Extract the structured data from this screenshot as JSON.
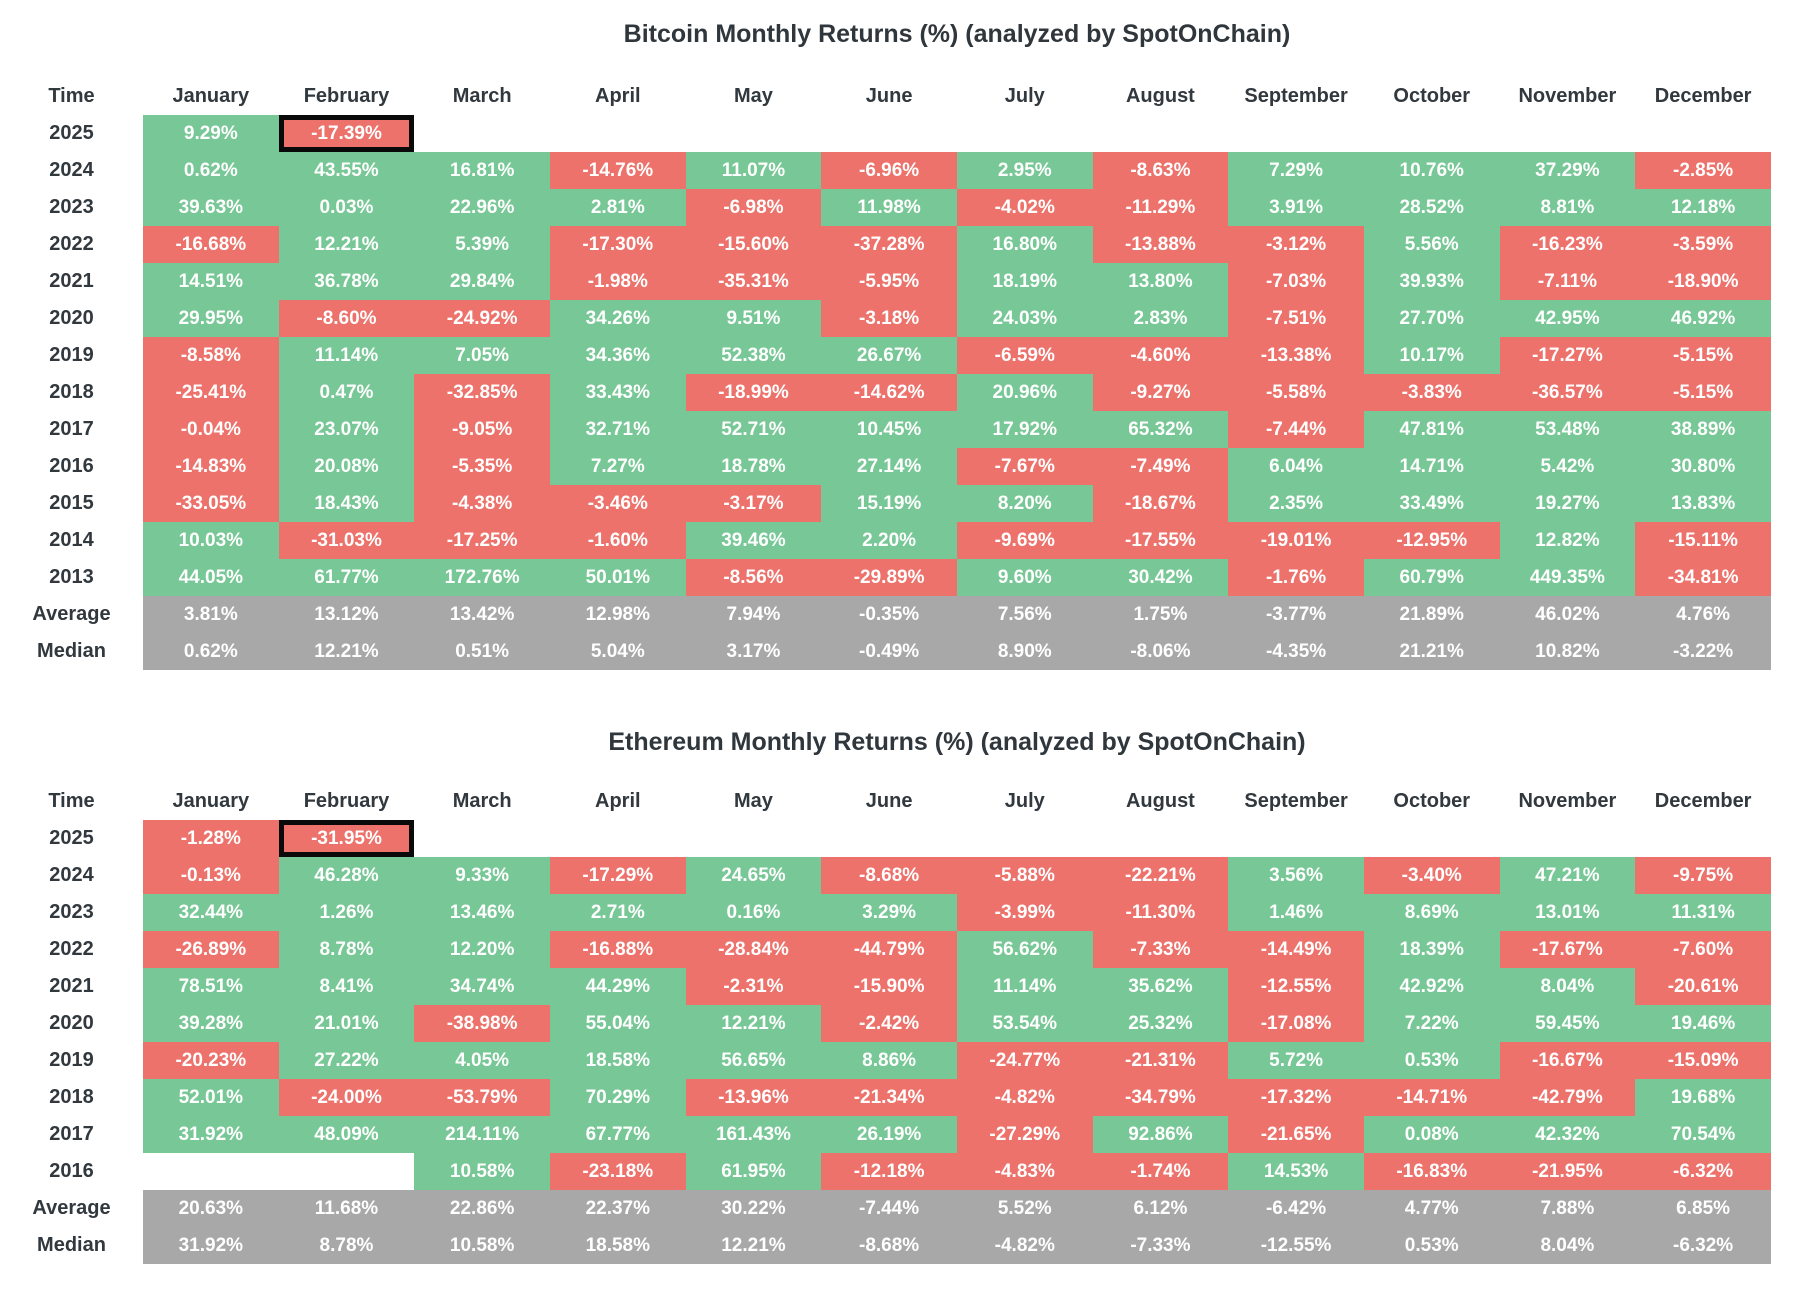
{
  "page": {
    "background": "#ffffff"
  },
  "colors": {
    "positive_cell": "#78c796",
    "negative_cell": "#ec726b",
    "summary_cell": "#a8a8a8",
    "empty_cell": "#ffffff",
    "cell_text": "#ffffff",
    "label_text": "#31383e",
    "highlight_border": "#0a0a0a"
  },
  "chart_data": [
    {
      "type": "heatmap",
      "title": "Bitcoin Monthly Returns (%) (analyzed by SpotOnChain)",
      "row_header": "Time",
      "columns": [
        "January",
        "February",
        "March",
        "April",
        "May",
        "June",
        "July",
        "August",
        "September",
        "October",
        "November",
        "December"
      ],
      "legend_position": "none",
      "grid": false,
      "highlight": {
        "row": "2025",
        "column": "February"
      },
      "rows": [
        {
          "label": "2025",
          "kind": "year",
          "values": [
            "9.29%",
            "-17.39%",
            "",
            "",
            "",
            "",
            "",
            "",
            "",
            "",
            "",
            ""
          ]
        },
        {
          "label": "2024",
          "kind": "year",
          "values": [
            "0.62%",
            "43.55%",
            "16.81%",
            "-14.76%",
            "11.07%",
            "-6.96%",
            "2.95%",
            "-8.63%",
            "7.29%",
            "10.76%",
            "37.29%",
            "-2.85%"
          ]
        },
        {
          "label": "2023",
          "kind": "year",
          "values": [
            "39.63%",
            "0.03%",
            "22.96%",
            "2.81%",
            "-6.98%",
            "11.98%",
            "-4.02%",
            "-11.29%",
            "3.91%",
            "28.52%",
            "8.81%",
            "12.18%"
          ]
        },
        {
          "label": "2022",
          "kind": "year",
          "values": [
            "-16.68%",
            "12.21%",
            "5.39%",
            "-17.30%",
            "-15.60%",
            "-37.28%",
            "16.80%",
            "-13.88%",
            "-3.12%",
            "5.56%",
            "-16.23%",
            "-3.59%"
          ]
        },
        {
          "label": "2021",
          "kind": "year",
          "values": [
            "14.51%",
            "36.78%",
            "29.84%",
            "-1.98%",
            "-35.31%",
            "-5.95%",
            "18.19%",
            "13.80%",
            "-7.03%",
            "39.93%",
            "-7.11%",
            "-18.90%"
          ]
        },
        {
          "label": "2020",
          "kind": "year",
          "values": [
            "29.95%",
            "-8.60%",
            "-24.92%",
            "34.26%",
            "9.51%",
            "-3.18%",
            "24.03%",
            "2.83%",
            "-7.51%",
            "27.70%",
            "42.95%",
            "46.92%"
          ]
        },
        {
          "label": "2019",
          "kind": "year",
          "values": [
            "-8.58%",
            "11.14%",
            "7.05%",
            "34.36%",
            "52.38%",
            "26.67%",
            "-6.59%",
            "-4.60%",
            "-13.38%",
            "10.17%",
            "-17.27%",
            "-5.15%"
          ]
        },
        {
          "label": "2018",
          "kind": "year",
          "values": [
            "-25.41%",
            "0.47%",
            "-32.85%",
            "33.43%",
            "-18.99%",
            "-14.62%",
            "20.96%",
            "-9.27%",
            "-5.58%",
            "-3.83%",
            "-36.57%",
            "-5.15%"
          ]
        },
        {
          "label": "2017",
          "kind": "year",
          "values": [
            "-0.04%",
            "23.07%",
            "-9.05%",
            "32.71%",
            "52.71%",
            "10.45%",
            "17.92%",
            "65.32%",
            "-7.44%",
            "47.81%",
            "53.48%",
            "38.89%"
          ]
        },
        {
          "label": "2016",
          "kind": "year",
          "values": [
            "-14.83%",
            "20.08%",
            "-5.35%",
            "7.27%",
            "18.78%",
            "27.14%",
            "-7.67%",
            "-7.49%",
            "6.04%",
            "14.71%",
            "5.42%",
            "30.80%"
          ]
        },
        {
          "label": "2015",
          "kind": "year",
          "values": [
            "-33.05%",
            "18.43%",
            "-4.38%",
            "-3.46%",
            "-3.17%",
            "15.19%",
            "8.20%",
            "-18.67%",
            "2.35%",
            "33.49%",
            "19.27%",
            "13.83%"
          ]
        },
        {
          "label": "2014",
          "kind": "year",
          "values": [
            "10.03%",
            "-31.03%",
            "-17.25%",
            "-1.60%",
            "39.46%",
            "2.20%",
            "-9.69%",
            "-17.55%",
            "-19.01%",
            "-12.95%",
            "12.82%",
            "-15.11%"
          ]
        },
        {
          "label": "2013",
          "kind": "year",
          "values": [
            "44.05%",
            "61.77%",
            "172.76%",
            "50.01%",
            "-8.56%",
            "-29.89%",
            "9.60%",
            "30.42%",
            "-1.76%",
            "60.79%",
            "449.35%",
            "-34.81%"
          ]
        },
        {
          "label": "Average",
          "kind": "summary",
          "values": [
            "3.81%",
            "13.12%",
            "13.42%",
            "12.98%",
            "7.94%",
            "-0.35%",
            "7.56%",
            "1.75%",
            "-3.77%",
            "21.89%",
            "46.02%",
            "4.76%"
          ]
        },
        {
          "label": "Median",
          "kind": "summary",
          "values": [
            "0.62%",
            "12.21%",
            "0.51%",
            "5.04%",
            "3.17%",
            "-0.49%",
            "8.90%",
            "-8.06%",
            "-4.35%",
            "21.21%",
            "10.82%",
            "-3.22%"
          ]
        }
      ]
    },
    {
      "type": "heatmap",
      "title": "Ethereum Monthly Returns (%) (analyzed by SpotOnChain)",
      "row_header": "Time",
      "columns": [
        "January",
        "February",
        "March",
        "April",
        "May",
        "June",
        "July",
        "August",
        "September",
        "October",
        "November",
        "December"
      ],
      "legend_position": "none",
      "grid": false,
      "highlight": {
        "row": "2025",
        "column": "February"
      },
      "rows": [
        {
          "label": "2025",
          "kind": "year",
          "values": [
            "-1.28%",
            "-31.95%",
            "",
            "",
            "",
            "",
            "",
            "",
            "",
            "",
            "",
            ""
          ]
        },
        {
          "label": "2024",
          "kind": "year",
          "values": [
            "-0.13%",
            "46.28%",
            "9.33%",
            "-17.29%",
            "24.65%",
            "-8.68%",
            "-5.88%",
            "-22.21%",
            "3.56%",
            "-3.40%",
            "47.21%",
            "-9.75%"
          ]
        },
        {
          "label": "2023",
          "kind": "year",
          "values": [
            "32.44%",
            "1.26%",
            "13.46%",
            "2.71%",
            "0.16%",
            "3.29%",
            "-3.99%",
            "-11.30%",
            "1.46%",
            "8.69%",
            "13.01%",
            "11.31%"
          ]
        },
        {
          "label": "2022",
          "kind": "year",
          "values": [
            "-26.89%",
            "8.78%",
            "12.20%",
            "-16.88%",
            "-28.84%",
            "-44.79%",
            "56.62%",
            "-7.33%",
            "-14.49%",
            "18.39%",
            "-17.67%",
            "-7.60%"
          ]
        },
        {
          "label": "2021",
          "kind": "year",
          "values": [
            "78.51%",
            "8.41%",
            "34.74%",
            "44.29%",
            "-2.31%",
            "-15.90%",
            "11.14%",
            "35.62%",
            "-12.55%",
            "42.92%",
            "8.04%",
            "-20.61%"
          ]
        },
        {
          "label": "2020",
          "kind": "year",
          "values": [
            "39.28%",
            "21.01%",
            "-38.98%",
            "55.04%",
            "12.21%",
            "-2.42%",
            "53.54%",
            "25.32%",
            "-17.08%",
            "7.22%",
            "59.45%",
            "19.46%"
          ]
        },
        {
          "label": "2019",
          "kind": "year",
          "values": [
            "-20.23%",
            "27.22%",
            "4.05%",
            "18.58%",
            "56.65%",
            "8.86%",
            "-24.77%",
            "-21.31%",
            "5.72%",
            "0.53%",
            "-16.67%",
            "-15.09%"
          ]
        },
        {
          "label": "2018",
          "kind": "year",
          "values": [
            "52.01%",
            "-24.00%",
            "-53.79%",
            "70.29%",
            "-13.96%",
            "-21.34%",
            "-4.82%",
            "-34.79%",
            "-17.32%",
            "-14.71%",
            "-42.79%",
            "19.68%"
          ]
        },
        {
          "label": "2017",
          "kind": "year",
          "values": [
            "31.92%",
            "48.09%",
            "214.11%",
            "67.77%",
            "161.43%",
            "26.19%",
            "-27.29%",
            "92.86%",
            "-21.65%",
            "0.08%",
            "42.32%",
            "70.54%"
          ]
        },
        {
          "label": "2016",
          "kind": "year",
          "values": [
            "",
            "",
            "10.58%",
            "-23.18%",
            "61.95%",
            "-12.18%",
            "-4.83%",
            "-1.74%",
            "14.53%",
            "-16.83%",
            "-21.95%",
            "-6.32%"
          ]
        },
        {
          "label": "Average",
          "kind": "summary",
          "values": [
            "20.63%",
            "11.68%",
            "22.86%",
            "22.37%",
            "30.22%",
            "-7.44%",
            "5.52%",
            "6.12%",
            "-6.42%",
            "4.77%",
            "7.88%",
            "6.85%"
          ]
        },
        {
          "label": "Median",
          "kind": "summary",
          "values": [
            "31.92%",
            "8.78%",
            "10.58%",
            "18.58%",
            "12.21%",
            "-8.68%",
            "-4.82%",
            "-7.33%",
            "-12.55%",
            "0.53%",
            "8.04%",
            "-6.32%"
          ]
        }
      ]
    }
  ]
}
